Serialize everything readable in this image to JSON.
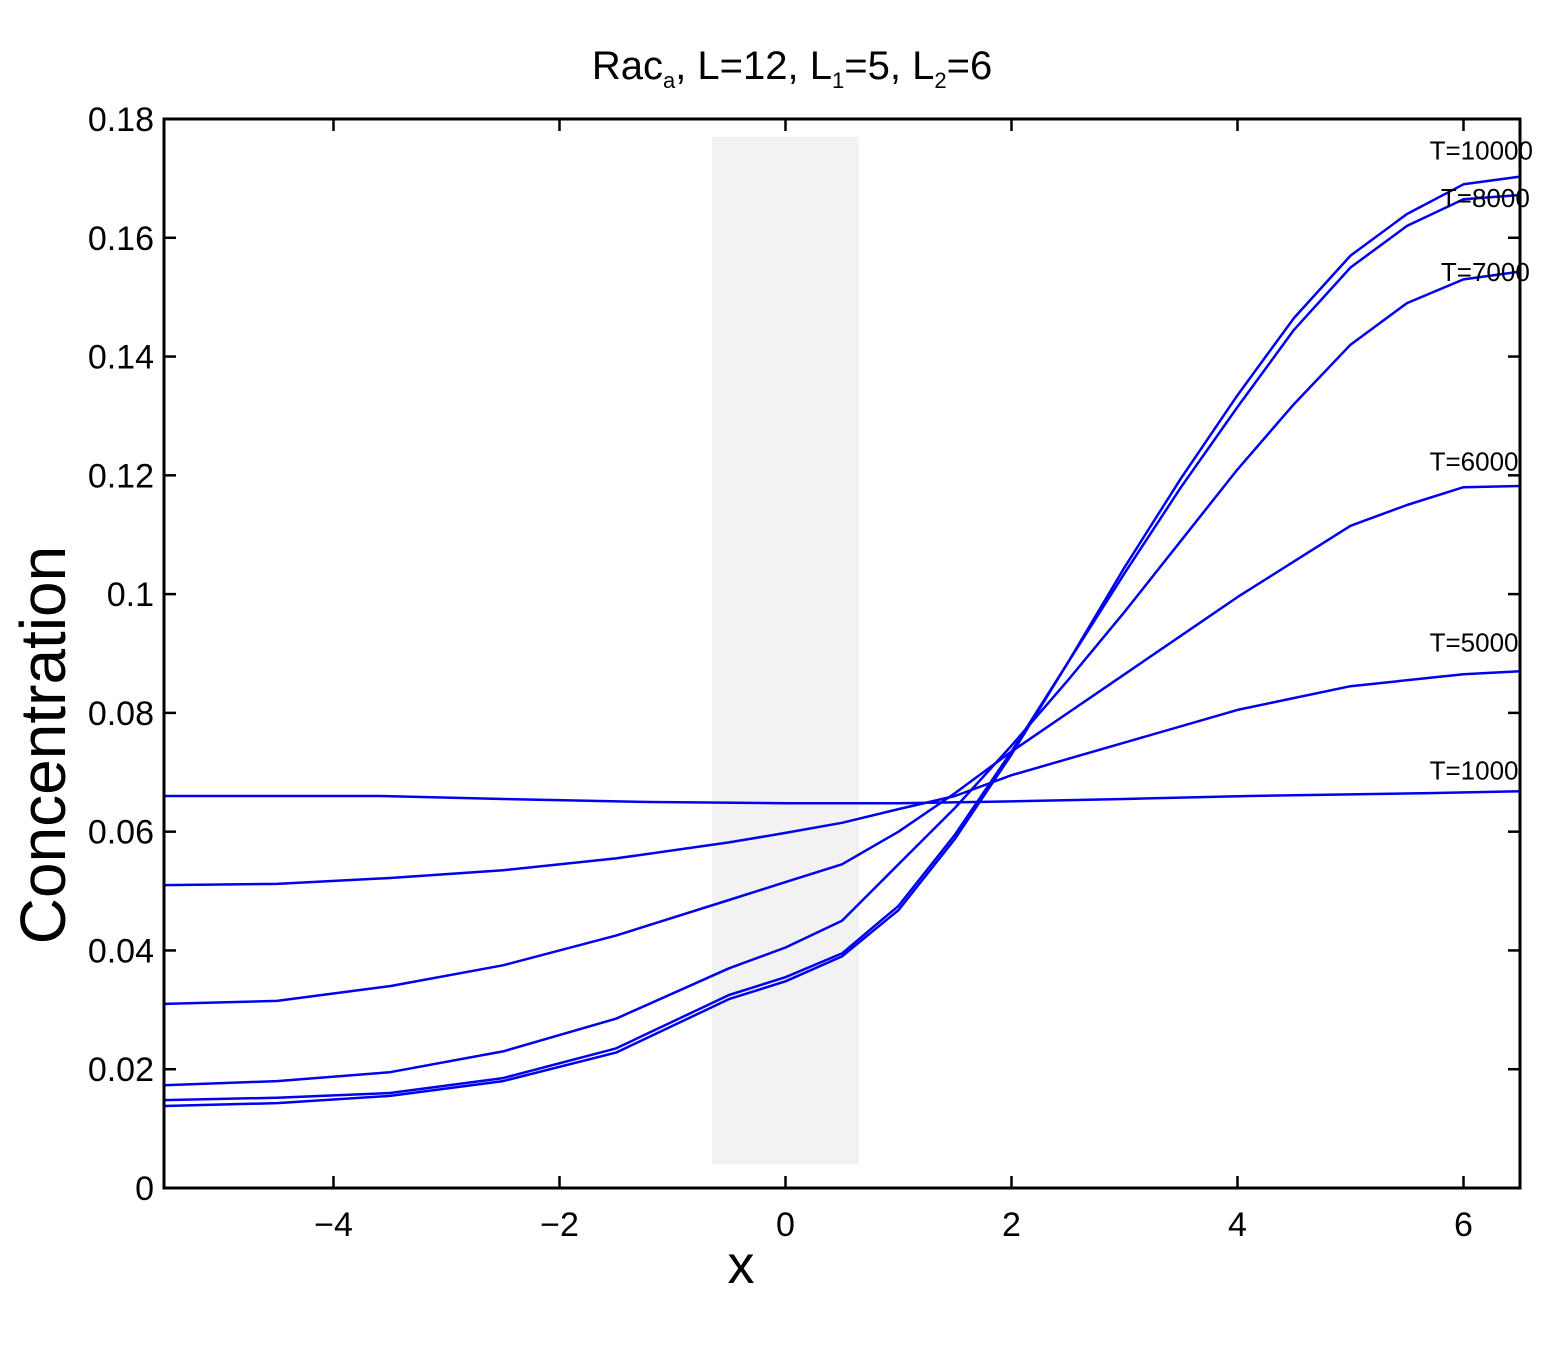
{
  "chart_data": {
    "type": "line",
    "title": {
      "main": "Rac",
      "main_sub": "a",
      "part1": ", L=12, L",
      "part1_sub": "1",
      "part2": "=5, L",
      "part2_sub": "2",
      "part3": "=6"
    },
    "xlabel": "x",
    "ylabel": "Concentration",
    "xlim": [
      -5.5,
      6.5
    ],
    "ylim": [
      0,
      0.18
    ],
    "xticks": [
      -4,
      -2,
      0,
      2,
      4,
      6
    ],
    "xtick_labels": [
      "−4",
      "−2",
      "0",
      "2",
      "4",
      "6"
    ],
    "yticks": [
      0,
      0.02,
      0.04,
      0.06,
      0.08,
      0.1,
      0.12,
      0.14,
      0.16,
      0.18
    ],
    "ytick_labels": [
      "0",
      "0.02",
      "0.04",
      "0.06",
      "0.08",
      "0.1",
      "0.12",
      "0.14",
      "0.16",
      "0.18"
    ],
    "shaded_region": {
      "x": [
        -0.65,
        0.65
      ],
      "y": [
        0.004,
        0.177
      ],
      "color": "#f2f2f2"
    },
    "line_color": "#0000ee",
    "series": [
      {
        "name": "T=1000",
        "x": [
          -5.5,
          -3.6,
          -2.5,
          -1.2,
          0,
          1.0,
          2.0,
          3.0,
          4.1,
          5.7,
          6.5
        ],
        "y": [
          0.066,
          0.066,
          0.0655,
          0.065,
          0.0648,
          0.0648,
          0.0651,
          0.0655,
          0.066,
          0.0665,
          0.0668
        ]
      },
      {
        "name": "T=5000",
        "x": [
          -5.5,
          -4.5,
          -3.5,
          -2.5,
          -1.5,
          -0.5,
          0,
          0.5,
          1,
          1.5,
          2,
          3,
          4,
          5,
          6,
          6.5
        ],
        "y": [
          0.051,
          0.0512,
          0.0522,
          0.0535,
          0.0555,
          0.0582,
          0.0598,
          0.0615,
          0.0638,
          0.066,
          0.0695,
          0.075,
          0.0805,
          0.0845,
          0.0865,
          0.087
        ]
      },
      {
        "name": "T=6000",
        "x": [
          -5.5,
          -4.5,
          -3.5,
          -2.5,
          -1.5,
          -0.5,
          0,
          0.5,
          1,
          1.5,
          2,
          2.5,
          3,
          3.5,
          4,
          4.5,
          5,
          5.5,
          6,
          6.5
        ],
        "y": [
          0.031,
          0.0315,
          0.034,
          0.0375,
          0.0425,
          0.0485,
          0.0515,
          0.0545,
          0.06,
          0.0665,
          0.0735,
          0.08,
          0.0865,
          0.093,
          0.0995,
          0.1055,
          0.1115,
          0.115,
          0.118,
          0.1182
        ]
      },
      {
        "name": "T=7000",
        "x": [
          -5.5,
          -4.5,
          -3.5,
          -2.5,
          -1.5,
          -0.5,
          0,
          0.5,
          1,
          1.5,
          2,
          2.5,
          3,
          3.5,
          4,
          4.5,
          5,
          5.5,
          6,
          6.5
        ],
        "y": [
          0.0173,
          0.018,
          0.0195,
          0.023,
          0.0285,
          0.037,
          0.0405,
          0.045,
          0.0545,
          0.064,
          0.0745,
          0.0855,
          0.097,
          0.109,
          0.121,
          0.132,
          0.142,
          0.149,
          0.153,
          0.1543
        ]
      },
      {
        "name": "T=8000",
        "x": [
          -5.5,
          -4.5,
          -3.5,
          -2.5,
          -1.5,
          -0.5,
          0,
          0.5,
          1,
          1.5,
          2,
          2.5,
          3,
          3.5,
          4,
          4.5,
          5,
          5.5,
          6,
          6.5
        ],
        "y": [
          0.0148,
          0.0152,
          0.016,
          0.0185,
          0.0235,
          0.0325,
          0.0355,
          0.0395,
          0.0475,
          0.0595,
          0.0735,
          0.0885,
          0.1035,
          0.118,
          0.1315,
          0.1445,
          0.155,
          0.162,
          0.1665,
          0.1672
        ]
      },
      {
        "name": "T=10000",
        "x": [
          -5.5,
          -4.5,
          -3.5,
          -2.5,
          -1.5,
          -0.5,
          0,
          0.5,
          1,
          1.5,
          2,
          2.5,
          3,
          3.5,
          4,
          4.5,
          5,
          5.5,
          6,
          6.5
        ],
        "y": [
          0.0138,
          0.0143,
          0.0155,
          0.018,
          0.0228,
          0.0318,
          0.0348,
          0.039,
          0.0468,
          0.0588,
          0.073,
          0.0885,
          0.1045,
          0.1195,
          0.1335,
          0.1465,
          0.157,
          0.164,
          0.169,
          0.1703
        ]
      }
    ],
    "curve_labels": [
      {
        "text": "T=10000",
        "x": 5.7,
        "y": 0.1732
      },
      {
        "text": "T=8000",
        "x": 5.8,
        "y": 0.1652
      },
      {
        "text": "T=7000",
        "x": 5.8,
        "y": 0.1527
      },
      {
        "text": "T=6000",
        "x": 5.7,
        "y": 0.1208
      },
      {
        "text": "T=5000",
        "x": 5.7,
        "y": 0.0903
      },
      {
        "text": "T=1000",
        "x": 5.7,
        "y": 0.0688
      }
    ]
  }
}
